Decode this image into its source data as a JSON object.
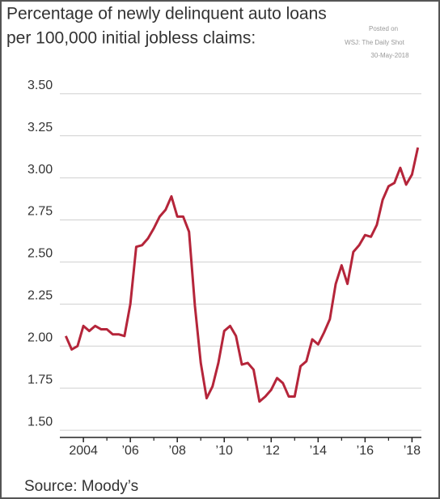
{
  "chart_data": {
    "type": "line",
    "title_lines": [
      "Percentage of newly delinquent auto loans",
      "per 100,000 initial jobless claims:"
    ],
    "annotation_lines": [
      "Posted on",
      "WSJ: The Daily Shot",
      "30-May-2018"
    ],
    "source": "Source: Moody’s",
    "x": [
      2003.25,
      2003.5,
      2003.75,
      2004,
      2004.25,
      2004.5,
      2004.75,
      2005,
      2005.25,
      2005.5,
      2005.75,
      2006,
      2006.25,
      2006.5,
      2006.75,
      2007,
      2007.25,
      2007.5,
      2007.75,
      2008,
      2008.25,
      2008.5,
      2008.75,
      2009,
      2009.25,
      2009.5,
      2009.75,
      2010,
      2010.25,
      2010.5,
      2010.75,
      2011,
      2011.25,
      2011.5,
      2011.75,
      2012,
      2012.25,
      2012.5,
      2012.75,
      2013,
      2013.25,
      2013.5,
      2013.75,
      2014,
      2014.25,
      2014.5,
      2014.75,
      2015,
      2015.25,
      2015.5,
      2015.75,
      2016,
      2016.25,
      2016.5,
      2016.75,
      2017,
      2017.25,
      2017.5,
      2017.75,
      2018,
      2018.25
    ],
    "series": [
      {
        "name": "Delinquent auto loans per 100,000 jobless claims",
        "color": "#b5253a",
        "values": [
          2.06,
          1.98,
          2.0,
          2.12,
          2.09,
          2.12,
          2.1,
          2.1,
          2.07,
          2.07,
          2.06,
          2.25,
          2.59,
          2.6,
          2.64,
          2.7,
          2.77,
          2.81,
          2.89,
          2.77,
          2.77,
          2.68,
          2.24,
          1.9,
          1.69,
          1.76,
          1.9,
          2.09,
          2.12,
          2.06,
          1.89,
          1.9,
          1.86,
          1.67,
          1.7,
          1.74,
          1.81,
          1.78,
          1.7,
          1.7,
          1.88,
          1.91,
          2.04,
          2.01,
          2.08,
          2.16,
          2.37,
          2.48,
          2.37,
          2.56,
          2.6,
          2.66,
          2.65,
          2.72,
          2.87,
          2.95,
          2.97,
          3.06,
          2.96,
          3.02,
          3.18
        ]
      }
    ],
    "xlim": [
      2003.1,
      2018.4
    ],
    "xticks": [
      {
        "value": 2004,
        "label": "2004"
      },
      {
        "value": 2006,
        "label": "’06"
      },
      {
        "value": 2008,
        "label": "’08"
      },
      {
        "value": 2010,
        "label": "’10"
      },
      {
        "value": 2012,
        "label": "’12"
      },
      {
        "value": 2014,
        "label": "’14"
      },
      {
        "value": 2016,
        "label": "’16"
      },
      {
        "value": 2018,
        "label": "’18"
      }
    ],
    "xminor_ticks": [
      2005,
      2007,
      2009,
      2011,
      2013,
      2015,
      2017
    ],
    "ylim": [
      1.457,
      3.6
    ],
    "yticks": [
      {
        "value": 1.5,
        "label": "1.50"
      },
      {
        "value": 1.75,
        "label": "1.75"
      },
      {
        "value": 2.0,
        "label": "2.00"
      },
      {
        "value": 2.25,
        "label": "2.25"
      },
      {
        "value": 2.5,
        "label": "2.50"
      },
      {
        "value": 2.75,
        "label": "2.75"
      },
      {
        "value": 3.0,
        "label": "3.00"
      },
      {
        "value": 3.25,
        "label": "3.25"
      },
      {
        "value": 3.5,
        "label": "3.50"
      }
    ],
    "grid": true
  }
}
